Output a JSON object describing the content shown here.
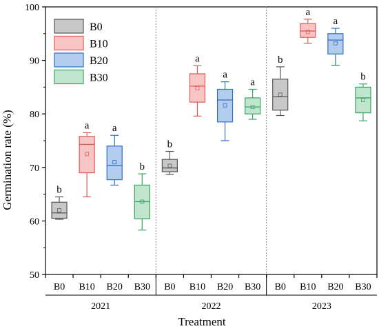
{
  "chart_data": {
    "type": "box",
    "title": "",
    "xlabel": "Treatment",
    "ylabel": "Germination rate (%)",
    "ylim": [
      50,
      100
    ],
    "yticks": [
      50,
      60,
      70,
      80,
      90,
      100
    ],
    "grid": false,
    "legend_position": "top-left",
    "treatments": [
      "B0",
      "B10",
      "B20",
      "B30"
    ],
    "years": [
      "2021",
      "2022",
      "2023"
    ],
    "colors": {
      "B0": {
        "fill": "#c8c8c8",
        "stroke": "#555555"
      },
      "B10": {
        "fill": "#f7c6c4",
        "stroke": "#e05a55"
      },
      "B20": {
        "fill": "#b4cdee",
        "stroke": "#2f6fc4"
      },
      "B30": {
        "fill": "#bfe6cc",
        "stroke": "#3aa363"
      }
    },
    "series": [
      {
        "name": "B0",
        "boxes": [
          {
            "year": "2021",
            "whisker_low": 60.3,
            "q1": 60.5,
            "median": 61.5,
            "q3": 63.5,
            "whisker_high": 64.5,
            "mean": 62.0,
            "letter": "b"
          },
          {
            "year": "2022",
            "whisker_low": 68.7,
            "q1": 69.2,
            "median": 69.9,
            "q3": 71.5,
            "whisker_high": 73.0,
            "mean": 70.3,
            "letter": "b"
          },
          {
            "year": "2023",
            "whisker_low": 79.7,
            "q1": 80.7,
            "median": 83.2,
            "q3": 86.5,
            "whisker_high": 88.8,
            "mean": 83.6,
            "letter": "b"
          }
        ]
      },
      {
        "name": "B10",
        "boxes": [
          {
            "year": "2021",
            "whisker_low": 64.5,
            "q1": 69.0,
            "median": 74.3,
            "q3": 75.8,
            "whisker_high": 76.5,
            "mean": 72.5,
            "letter": "a"
          },
          {
            "year": "2022",
            "whisker_low": 79.6,
            "q1": 82.2,
            "median": 85.2,
            "q3": 87.5,
            "whisker_high": 89.0,
            "mean": 84.8,
            "letter": "a"
          },
          {
            "year": "2023",
            "whisker_low": 93.2,
            "q1": 94.3,
            "median": 95.5,
            "q3": 96.9,
            "whisker_high": 97.7,
            "mean": 95.3,
            "letter": "a"
          }
        ]
      },
      {
        "name": "B20",
        "boxes": [
          {
            "year": "2021",
            "whisker_low": 66.7,
            "q1": 67.7,
            "median": 70.4,
            "q3": 74.0,
            "whisker_high": 76.0,
            "mean": 71.0,
            "letter": "a"
          },
          {
            "year": "2022",
            "whisker_low": 75.0,
            "q1": 78.5,
            "median": 82.6,
            "q3": 84.6,
            "whisker_high": 86.0,
            "mean": 81.6,
            "letter": "a"
          },
          {
            "year": "2023",
            "whisker_low": 89.1,
            "q1": 91.2,
            "median": 93.8,
            "q3": 95.0,
            "whisker_high": 96.0,
            "mean": 93.2,
            "letter": "a"
          }
        ]
      },
      {
        "name": "B30",
        "boxes": [
          {
            "year": "2021",
            "whisker_low": 58.3,
            "q1": 60.4,
            "median": 63.6,
            "q3": 66.7,
            "whisker_high": 68.8,
            "mean": 63.6,
            "letter": "b"
          },
          {
            "year": "2022",
            "whisker_low": 79.0,
            "q1": 80.0,
            "median": 81.3,
            "q3": 83.0,
            "whisker_high": 84.6,
            "mean": 81.3,
            "letter": "a"
          },
          {
            "year": "2023",
            "whisker_low": 78.7,
            "q1": 80.2,
            "median": 83.0,
            "q3": 85.0,
            "whisker_high": 85.6,
            "mean": 82.6,
            "letter": "b"
          }
        ]
      }
    ]
  }
}
